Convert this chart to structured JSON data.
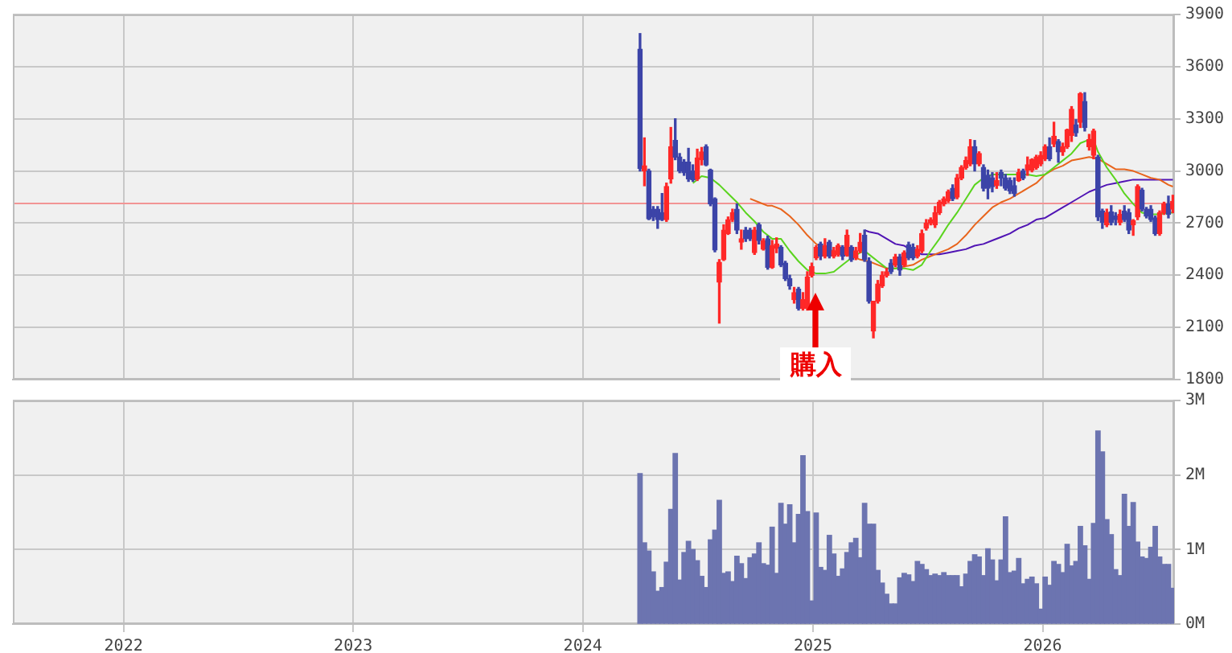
{
  "chart_data": [
    {
      "type": "candlestick",
      "x": [
        "2024-04-01",
        "2024-04-08",
        "2024-04-15",
        "2024-04-22",
        "2024-04-29",
        "2024-05-06",
        "2024-05-13",
        "2024-05-20",
        "2024-05-27",
        "2024-06-03",
        "2024-06-10",
        "2024-06-17",
        "2024-06-24",
        "2024-07-01",
        "2024-07-08",
        "2024-07-15",
        "2024-07-22",
        "2024-07-29",
        "2024-08-05",
        "2024-08-12",
        "2024-08-19",
        "2024-08-26",
        "2024-09-02",
        "2024-09-09",
        "2024-09-16",
        "2024-09-23",
        "2024-09-30",
        "2024-10-07",
        "2024-10-14",
        "2024-10-21",
        "2024-10-28",
        "2024-11-04",
        "2024-11-11",
        "2024-11-18",
        "2024-11-25",
        "2024-12-02",
        "2024-12-09",
        "2024-12-16",
        "2024-12-23",
        "2024-12-30",
        "2025-01-06",
        "2025-01-13",
        "2025-01-20",
        "2025-01-27",
        "2025-02-03",
        "2025-02-10",
        "2025-02-17",
        "2025-02-24",
        "2025-03-03",
        "2025-03-10",
        "2025-03-17",
        "2025-03-24",
        "2025-03-31",
        "2025-04-07",
        "2025-04-14",
        "2025-04-21",
        "2025-04-28",
        "2025-05-05",
        "2025-05-12",
        "2025-05-19",
        "2025-05-26",
        "2025-06-02",
        "2025-06-09",
        "2025-06-16",
        "2025-06-23",
        "2025-06-30",
        "2025-07-07",
        "2025-07-14",
        "2025-07-21",
        "2025-07-28",
        "2025-08-04",
        "2025-08-11",
        "2025-08-18",
        "2025-08-25",
        "2025-09-01",
        "2025-09-08",
        "2025-09-15",
        "2025-09-22",
        "2025-09-29",
        "2025-10-06",
        "2025-10-13",
        "2025-10-20",
        "2025-10-27",
        "2025-11-03",
        "2025-11-10",
        "2025-11-17",
        "2025-11-24",
        "2025-12-01",
        "2025-12-08",
        "2025-12-15",
        "2025-12-22",
        "2025-12-29",
        "2026-01-05",
        "2026-01-12",
        "2026-01-19",
        "2026-01-26",
        "2026-02-02",
        "2026-02-09",
        "2026-02-16",
        "2026-02-23",
        "2026-03-02",
        "2026-03-09",
        "2026-03-16",
        "2026-03-23",
        "2026-03-30",
        "2026-04-06",
        "2026-04-13",
        "2026-04-20",
        "2026-04-27",
        "2026-05-04",
        "2026-05-11",
        "2026-05-18",
        "2026-05-25",
        "2026-06-01",
        "2026-06-08",
        "2026-06-15",
        "2026-06-22",
        "2026-06-29",
        "2026-07-06",
        "2026-07-13",
        "2026-07-20",
        "2026-07-27"
      ],
      "ohlc": [
        [
          3700,
          3790,
          3000,
          3015
        ],
        [
          3000,
          3190,
          2915,
          3030
        ],
        [
          3000,
          3010,
          2720,
          2725
        ],
        [
          2780,
          2795,
          2715,
          2735
        ],
        [
          2780,
          2795,
          2670,
          2720
        ],
        [
          2760,
          2870,
          2715,
          2720
        ],
        [
          2720,
          2930,
          2710,
          2910
        ],
        [
          2955,
          3250,
          2930,
          3140
        ],
        [
          3175,
          3300,
          3065,
          3080
        ],
        [
          3080,
          3100,
          2990,
          3000
        ],
        [
          3050,
          3065,
          2975,
          2990
        ],
        [
          3050,
          3130,
          2940,
          2955
        ],
        [
          3000,
          3035,
          2940,
          2950
        ],
        [
          2955,
          3125,
          2945,
          3075
        ],
        [
          3065,
          3135,
          3035,
          3110
        ],
        [
          3140,
          3150,
          3030,
          3035
        ],
        [
          3005,
          3010,
          2800,
          2810
        ],
        [
          2840,
          2845,
          2535,
          2545
        ],
        [
          2360,
          2490,
          2125,
          2475
        ],
        [
          2490,
          2690,
          2485,
          2660
        ],
        [
          2640,
          2735,
          2635,
          2720
        ],
        [
          2720,
          2780,
          2710,
          2760
        ],
        [
          2780,
          2810,
          2640,
          2660
        ],
        [
          2590,
          2660,
          2550,
          2610
        ],
        [
          2660,
          2675,
          2595,
          2610
        ],
        [
          2660,
          2670,
          2600,
          2610
        ],
        [
          2530,
          2675,
          2520,
          2660
        ],
        [
          2690,
          2700,
          2580,
          2600
        ],
        [
          2550,
          2610,
          2545,
          2600
        ],
        [
          2610,
          2625,
          2435,
          2445
        ],
        [
          2445,
          2600,
          2440,
          2570
        ],
        [
          2555,
          2615,
          2530,
          2580
        ],
        [
          2560,
          2570,
          2450,
          2460
        ],
        [
          2470,
          2480,
          2370,
          2380
        ],
        [
          2380,
          2400,
          2320,
          2340
        ],
        [
          2260,
          2330,
          2240,
          2300
        ],
        [
          2320,
          2330,
          2200,
          2210
        ],
        [
          2210,
          2300,
          2200,
          2260
        ],
        [
          2210,
          2420,
          2200,
          2390
        ],
        [
          2400,
          2470,
          2390,
          2450
        ],
        [
          2500,
          2570,
          2490,
          2560
        ],
        [
          2580,
          2590,
          2490,
          2510
        ],
        [
          2510,
          2610,
          2500,
          2570
        ],
        [
          2590,
          2600,
          2500,
          2510
        ],
        [
          2510,
          2560,
          2500,
          2540
        ],
        [
          2520,
          2580,
          2510,
          2570
        ],
        [
          2560,
          2570,
          2490,
          2510
        ],
        [
          2520,
          2660,
          2510,
          2630
        ],
        [
          2560,
          2570,
          2480,
          2490
        ],
        [
          2500,
          2560,
          2490,
          2540
        ],
        [
          2540,
          2640,
          2530,
          2590
        ],
        [
          2630,
          2660,
          2480,
          2490
        ],
        [
          2480,
          2500,
          2240,
          2250
        ],
        [
          2080,
          2250,
          2040,
          2250
        ],
        [
          2250,
          2370,
          2240,
          2350
        ],
        [
          2340,
          2420,
          2330,
          2400
        ],
        [
          2400,
          2440,
          2390,
          2420
        ],
        [
          2470,
          2490,
          2410,
          2420
        ],
        [
          2460,
          2520,
          2450,
          2505
        ],
        [
          2505,
          2520,
          2400,
          2430
        ],
        [
          2460,
          2540,
          2450,
          2530
        ],
        [
          2575,
          2590,
          2490,
          2500
        ],
        [
          2560,
          2580,
          2490,
          2500
        ],
        [
          2510,
          2570,
          2500,
          2550
        ],
        [
          2540,
          2660,
          2530,
          2640
        ],
        [
          2670,
          2720,
          2660,
          2700
        ],
        [
          2700,
          2730,
          2690,
          2720
        ],
        [
          2690,
          2795,
          2675,
          2760
        ],
        [
          2760,
          2830,
          2750,
          2820
        ],
        [
          2810,
          2850,
          2800,
          2840
        ],
        [
          2830,
          2890,
          2820,
          2880
        ],
        [
          2900,
          2920,
          2830,
          2840
        ],
        [
          2850,
          2980,
          2840,
          2960
        ],
        [
          2960,
          3030,
          2950,
          3020
        ],
        [
          3020,
          3080,
          3010,
          3060
        ],
        [
          3040,
          3180,
          3030,
          3140
        ],
        [
          3140,
          3175,
          3000,
          3040
        ],
        [
          3040,
          3110,
          3030,
          3100
        ],
        [
          3020,
          3035,
          2885,
          2900
        ],
        [
          2975,
          3005,
          2840,
          2900
        ],
        [
          2960,
          2990,
          2880,
          2910
        ],
        [
          2915,
          2990,
          2900,
          2945
        ],
        [
          2990,
          3005,
          2915,
          2960
        ],
        [
          2960,
          2980,
          2890,
          2900
        ],
        [
          2945,
          2960,
          2870,
          2885
        ],
        [
          2915,
          2960,
          2855,
          2870
        ],
        [
          2945,
          3010,
          2940,
          2990
        ],
        [
          3000,
          3010,
          2950,
          2960
        ],
        [
          3005,
          3080,
          2975,
          3035
        ],
        [
          3005,
          3070,
          2995,
          3065
        ],
        [
          3020,
          3090,
          3010,
          3080
        ],
        [
          3040,
          3110,
          3030,
          3090
        ],
        [
          3070,
          3150,
          3060,
          3140
        ],
        [
          3140,
          3190,
          3060,
          3070
        ],
        [
          3155,
          3280,
          3140,
          3200
        ],
        [
          3170,
          3180,
          3050,
          3110
        ],
        [
          3110,
          3160,
          3090,
          3140
        ],
        [
          3140,
          3240,
          3130,
          3235
        ],
        [
          3205,
          3370,
          3170,
          3355
        ],
        [
          3265,
          3295,
          3200,
          3220
        ],
        [
          3280,
          3450,
          3250,
          3445
        ],
        [
          3400,
          3450,
          3230,
          3250
        ],
        [
          3140,
          3210,
          3120,
          3180
        ],
        [
          3090,
          3240,
          3070,
          3230
        ],
        [
          3080,
          3090,
          2715,
          2735
        ],
        [
          2770,
          2780,
          2670,
          2705
        ],
        [
          2690,
          2780,
          2680,
          2760
        ],
        [
          2765,
          2800,
          2690,
          2705
        ],
        [
          2740,
          2760,
          2690,
          2720
        ],
        [
          2705,
          2775,
          2690,
          2750
        ],
        [
          2770,
          2800,
          2710,
          2720
        ],
        [
          2760,
          2780,
          2640,
          2660
        ],
        [
          2690,
          2720,
          2630,
          2715
        ],
        [
          2735,
          2920,
          2720,
          2910
        ],
        [
          2890,
          2900,
          2770,
          2780
        ],
        [
          2780,
          2790,
          2730,
          2740
        ],
        [
          2780,
          2800,
          2710,
          2720
        ],
        [
          2730,
          2740,
          2630,
          2640
        ],
        [
          2640,
          2770,
          2630,
          2760
        ],
        [
          2760,
          2820,
          2750,
          2810
        ],
        [
          2810,
          2855,
          2730,
          2750
        ],
        [
          2780,
          2860,
          2760,
          2825
        ]
      ],
      "colors": [
        "#3c44a8",
        "#ff2828",
        "#3c44a8",
        "#3c44a8",
        "#3c44a8",
        "#3c44a8",
        "#ff2828",
        "#ff2828",
        "#3c44a8",
        "#3c44a8",
        "#3c44a8",
        "#3c44a8",
        "#3c44a8",
        "#ff2828",
        "#ff2828",
        "#3c44a8",
        "#3c44a8",
        "#3c44a8",
        "#ff2828",
        "#ff2828",
        "#ff2828",
        "#ff2828",
        "#3c44a8",
        "#ff2828",
        "#3c44a8",
        "#3c44a8",
        "#ff2828",
        "#3c44a8",
        "#ff2828",
        "#3c44a8",
        "#ff2828",
        "#ff2828",
        "#3c44a8",
        "#3c44a8",
        "#3c44a8",
        "#ff2828",
        "#3c44a8",
        "#ff2828",
        "#ff2828",
        "#ff2828",
        "#ff2828",
        "#3c44a8",
        "#ff2828",
        "#3c44a8",
        "#ff2828",
        "#ff2828",
        "#3c44a8",
        "#ff2828",
        "#3c44a8",
        "#ff2828",
        "#ff2828",
        "#3c44a8",
        "#3c44a8",
        "#ff2828",
        "#ff2828",
        "#ff2828",
        "#ff2828",
        "#3c44a8",
        "#ff2828",
        "#3c44a8",
        "#ff2828",
        "#3c44a8",
        "#3c44a8",
        "#ff2828",
        "#ff2828",
        "#ff2828",
        "#ff2828",
        "#ff2828",
        "#ff2828",
        "#ff2828",
        "#ff2828",
        "#3c44a8",
        "#ff2828",
        "#ff2828",
        "#ff2828",
        "#ff2828",
        "#3c44a8",
        "#ff2828",
        "#3c44a8",
        "#3c44a8",
        "#3c44a8",
        "#ff2828",
        "#3c44a8",
        "#3c44a8",
        "#3c44a8",
        "#3c44a8",
        "#ff2828",
        "#3c44a8",
        "#ff2828",
        "#ff2828",
        "#ff2828",
        "#ff2828",
        "#ff2828",
        "#3c44a8",
        "#ff2828",
        "#3c44a8",
        "#ff2828",
        "#ff2828",
        "#ff2828",
        "#3c44a8",
        "#ff2828",
        "#3c44a8",
        "#ff2828",
        "#ff2828",
        "#3c44a8",
        "#3c44a8",
        "#ff2828",
        "#3c44a8",
        "#3c44a8",
        "#ff2828",
        "#3c44a8",
        "#3c44a8",
        "#ff2828",
        "#ff2828",
        "#3c44a8",
        "#3c44a8",
        "#3c44a8",
        "#3c44a8",
        "#ff2828",
        "#ff2828",
        "#3c44a8",
        "#ff2828"
      ],
      "series": [
        {
          "type": "line",
          "color": "#5ad41e",
          "x": [
            "2024-06-24",
            "2024-07-08",
            "2024-07-22",
            "2024-08-05",
            "2024-08-19",
            "2024-09-02",
            "2024-09-16",
            "2024-09-30",
            "2024-10-14",
            "2024-10-28",
            "2024-11-11",
            "2024-11-25",
            "2024-12-09",
            "2024-12-23",
            "2025-01-06",
            "2025-01-20",
            "2025-02-03",
            "2025-02-17",
            "2025-03-03",
            "2025-03-17",
            "2025-03-24",
            "2025-03-31",
            "2025-04-14",
            "2025-04-28",
            "2025-05-12",
            "2025-05-26",
            "2025-06-09",
            "2025-06-23",
            "2025-07-07",
            "2025-07-21",
            "2025-08-04",
            "2025-08-18",
            "2025-09-01",
            "2025-09-15",
            "2025-09-29",
            "2025-10-13",
            "2025-10-27",
            "2025-11-10",
            "2025-11-24",
            "2025-12-08",
            "2025-12-22",
            "2026-01-05",
            "2026-01-19",
            "2026-02-02",
            "2026-02-16",
            "2026-03-02",
            "2026-03-16",
            "2026-03-23",
            "2026-03-30",
            "2026-04-13",
            "2026-04-27",
            "2026-05-11",
            "2026-05-25",
            "2026-06-08",
            "2026-06-22",
            "2026-07-06",
            "2026-07-20",
            "2026-07-27"
          ],
          "values": [
            2930,
            2970,
            2960,
            2920,
            2870,
            2820,
            2760,
            2710,
            2650,
            2610,
            2610,
            2540,
            2480,
            2430,
            2410,
            2410,
            2420,
            2460,
            2500,
            2530,
            2540,
            2520,
            2480,
            2440,
            2440,
            2440,
            2430,
            2460,
            2540,
            2610,
            2690,
            2760,
            2840,
            2920,
            2960,
            2980,
            2980,
            2980,
            2980,
            2980,
            2970,
            2980,
            3020,
            3060,
            3100,
            3160,
            3180,
            3180,
            3110,
            3020,
            2950,
            2870,
            2810,
            2760,
            2750,
            2750,
            2760,
            2760
          ]
        },
        {
          "type": "line",
          "color": "#e8641c",
          "x": [
            "2024-09-23",
            "2024-10-07",
            "2024-10-21",
            "2024-10-28",
            "2024-11-11",
            "2024-11-25",
            "2024-12-09",
            "2024-12-23",
            "2025-01-06",
            "2025-01-20",
            "2025-02-03",
            "2025-02-17",
            "2025-03-03",
            "2025-03-17",
            "2025-03-31",
            "2025-04-14",
            "2025-04-28",
            "2025-05-12",
            "2025-05-26",
            "2025-06-09",
            "2025-06-23",
            "2025-07-07",
            "2025-07-21",
            "2025-08-04",
            "2025-08-18",
            "2025-09-01",
            "2025-09-15",
            "2025-09-29",
            "2025-10-13",
            "2025-10-27",
            "2025-11-10",
            "2025-11-24",
            "2025-12-08",
            "2025-12-22",
            "2026-01-05",
            "2026-01-19",
            "2026-02-02",
            "2026-02-16",
            "2026-03-02",
            "2026-03-16",
            "2026-03-30",
            "2026-04-13",
            "2026-04-27",
            "2026-05-11",
            "2026-05-25",
            "2026-06-08",
            "2026-06-22",
            "2026-07-06",
            "2026-07-20",
            "2026-07-27"
          ],
          "values": [
            2840,
            2820,
            2800,
            2800,
            2780,
            2740,
            2690,
            2630,
            2580,
            2550,
            2540,
            2520,
            2510,
            2490,
            2480,
            2460,
            2440,
            2440,
            2450,
            2460,
            2490,
            2510,
            2530,
            2550,
            2580,
            2630,
            2690,
            2740,
            2790,
            2820,
            2840,
            2870,
            2900,
            2930,
            2980,
            3010,
            3030,
            3060,
            3070,
            3080,
            3070,
            3040,
            3010,
            3010,
            3000,
            2980,
            2960,
            2950,
            2920,
            2910
          ]
        },
        {
          "type": "line",
          "color": "#5014b4",
          "x": [
            "2025-03-24",
            "2025-03-31",
            "2025-04-14",
            "2025-04-28",
            "2025-05-12",
            "2025-05-26",
            "2025-06-09",
            "2025-06-23",
            "2025-07-07",
            "2025-07-21",
            "2025-08-04",
            "2025-08-18",
            "2025-09-01",
            "2025-09-15",
            "2025-09-29",
            "2025-10-13",
            "2025-10-27",
            "2025-11-10",
            "2025-11-24",
            "2025-12-08",
            "2025-12-22",
            "2026-01-05",
            "2026-01-19",
            "2026-02-02",
            "2026-02-16",
            "2026-03-02",
            "2026-03-16",
            "2026-03-30",
            "2026-04-13",
            "2026-04-27",
            "2026-05-11",
            "2026-05-25",
            "2026-06-08",
            "2026-06-22",
            "2026-07-06",
            "2026-07-20",
            "2026-07-27"
          ],
          "values": [
            2660,
            2650,
            2640,
            2610,
            2580,
            2570,
            2540,
            2520,
            2520,
            2520,
            2530,
            2540,
            2550,
            2570,
            2580,
            2600,
            2620,
            2640,
            2670,
            2690,
            2720,
            2730,
            2760,
            2790,
            2820,
            2850,
            2880,
            2900,
            2920,
            2930,
            2940,
            2950,
            2950,
            2950,
            2950,
            2950,
            2950
          ]
        }
      ],
      "xlim": [
        "2021-07-09",
        "2026-07-29"
      ],
      "xticks": [
        "2022",
        "2023",
        "2024",
        "2025",
        "2026"
      ],
      "ylim": [
        1800,
        3900
      ],
      "yticks": [
        1800,
        2100,
        2400,
        2700,
        3000,
        3300,
        3600,
        3900
      ],
      "grid": true,
      "tick_labels": "y",
      "ref_lines": [
        {
          "axis": "y",
          "value": 2820,
          "color": "#f29494"
        }
      ],
      "annotations": [
        {
          "text": "購入",
          "x": "2025-01-06",
          "y": 2300
        }
      ]
    },
    {
      "type": "bar",
      "x": [
        "2024-04-01",
        "2024-04-08",
        "2024-04-15",
        "2024-04-22",
        "2024-04-29",
        "2024-05-06",
        "2024-05-13",
        "2024-05-20",
        "2024-05-27",
        "2024-06-03",
        "2024-06-10",
        "2024-06-17",
        "2024-06-24",
        "2024-07-01",
        "2024-07-08",
        "2024-07-15",
        "2024-07-22",
        "2024-07-29",
        "2024-08-05",
        "2024-08-12",
        "2024-08-19",
        "2024-08-26",
        "2024-09-02",
        "2024-09-09",
        "2024-09-16",
        "2024-09-23",
        "2024-09-30",
        "2024-10-07",
        "2024-10-14",
        "2024-10-21",
        "2024-10-28",
        "2024-11-04",
        "2024-11-11",
        "2024-11-18",
        "2024-11-25",
        "2024-12-02",
        "2024-12-09",
        "2024-12-16",
        "2024-12-23",
        "2024-12-30",
        "2025-01-06",
        "2025-01-13",
        "2025-01-20",
        "2025-01-27",
        "2025-02-03",
        "2025-02-10",
        "2025-02-17",
        "2025-02-24",
        "2025-03-03",
        "2025-03-10",
        "2025-03-17",
        "2025-03-24",
        "2025-03-31",
        "2025-04-07",
        "2025-04-14",
        "2025-04-21",
        "2025-04-28",
        "2025-05-05",
        "2025-05-12",
        "2025-05-19",
        "2025-05-26",
        "2025-06-02",
        "2025-06-09",
        "2025-06-16",
        "2025-06-23",
        "2025-06-30",
        "2025-07-07",
        "2025-07-14",
        "2025-07-21",
        "2025-07-28",
        "2025-08-04",
        "2025-08-11",
        "2025-08-18",
        "2025-08-25",
        "2025-09-01",
        "2025-09-08",
        "2025-09-15",
        "2025-09-22",
        "2025-09-29",
        "2025-10-06",
        "2025-10-13",
        "2025-10-20",
        "2025-10-27",
        "2025-11-03",
        "2025-11-10",
        "2025-11-17",
        "2025-11-24",
        "2025-12-01",
        "2025-12-08",
        "2025-12-15",
        "2025-12-22",
        "2025-12-29",
        "2026-01-05",
        "2026-01-12",
        "2026-01-19",
        "2026-01-26",
        "2026-02-02",
        "2026-02-09",
        "2026-02-16",
        "2026-02-23",
        "2026-03-02",
        "2026-03-09",
        "2026-03-16",
        "2026-03-23",
        "2026-03-30",
        "2026-04-06",
        "2026-04-13",
        "2026-04-20",
        "2026-04-27",
        "2026-05-04",
        "2026-05-11",
        "2026-05-18",
        "2026-05-25",
        "2026-06-01",
        "2026-06-08",
        "2026-06-15",
        "2026-06-22",
        "2026-06-29",
        "2026-07-06",
        "2026-07-13",
        "2026-07-20",
        "2026-07-27"
      ],
      "values": [
        2.02,
        1.09,
        0.98,
        0.7,
        0.44,
        0.49,
        0.83,
        1.54,
        2.29,
        0.59,
        0.96,
        1.11,
        1.0,
        0.85,
        0.64,
        0.49,
        1.13,
        1.26,
        1.66,
        0.68,
        0.7,
        0.57,
        0.91,
        0.81,
        0.61,
        0.89,
        0.94,
        1.09,
        0.81,
        0.79,
        1.3,
        0.68,
        1.62,
        1.34,
        1.6,
        1.09,
        1.47,
        2.26,
        1.51,
        0.31,
        1.49,
        0.76,
        0.72,
        1.19,
        0.94,
        0.64,
        0.74,
        0.96,
        1.09,
        1.15,
        0.89,
        1.62,
        1.34,
        1.34,
        0.72,
        0.55,
        0.4,
        0.27,
        0.27,
        0.62,
        0.68,
        0.66,
        0.57,
        0.84,
        0.8,
        0.73,
        0.65,
        0.67,
        0.65,
        0.69,
        0.65,
        0.65,
        0.65,
        0.5,
        0.67,
        0.84,
        0.93,
        0.9,
        0.65,
        1.01,
        0.86,
        0.58,
        0.86,
        1.44,
        0.69,
        0.71,
        0.88,
        0.54,
        0.6,
        0.63,
        0.54,
        0.2,
        0.63,
        0.52,
        0.84,
        0.8,
        0.69,
        1.07,
        0.78,
        0.84,
        1.31,
        1.05,
        0.6,
        1.35,
        2.59,
        2.31,
        1.4,
        1.2,
        0.73,
        0.65,
        1.74,
        1.31,
        1.63,
        1.1,
        0.9,
        0.88,
        1.03,
        1.31,
        0.9,
        0.8,
        0.8,
        0.48
      ],
      "color": "#6c74b0",
      "xlim": [
        "2021-07-09",
        "2026-07-29"
      ],
      "xticks": [
        "2022",
        "2023",
        "2024",
        "2025",
        "2026"
      ],
      "ylim": [
        0,
        3
      ],
      "yticks": [
        {
          "value": 0,
          "label": "0M"
        },
        {
          "value": 1,
          "label": "1M"
        },
        {
          "value": 2,
          "label": "2M"
        },
        {
          "value": 3,
          "label": "3M"
        }
      ],
      "grid": true
    }
  ]
}
